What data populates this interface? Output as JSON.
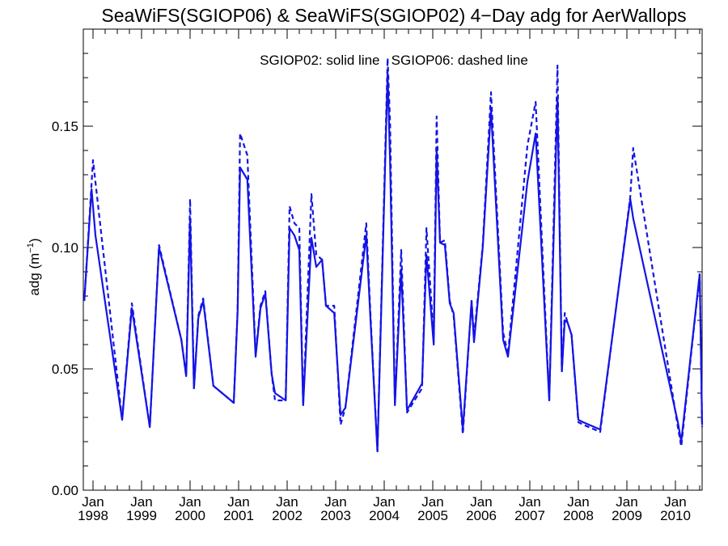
{
  "chart_data": {
    "type": "line",
    "title": "SeaWiFS(SGIOP06) & SeaWiFS(SGIOP02) 4−Day adg for AerWallops",
    "annotation": "SGIOP02: solid line   SGIOP06: dashed line",
    "ylabel": "adg (m",
    "ylabel_sup": "−1",
    "ylabel_close": ")",
    "xlim": [
      1997.8,
      2010.55
    ],
    "ylim": [
      0.0,
      0.19
    ],
    "grid": false,
    "x_major_ticks": [
      1998,
      1999,
      2000,
      2001,
      2002,
      2003,
      2004,
      2005,
      2006,
      2007,
      2008,
      2009,
      2010
    ],
    "x_tick_month_labels": [
      "Jan",
      "Jan",
      "Jan",
      "Jan",
      "Jan",
      "Jan",
      "Jan",
      "Jan",
      "Jan",
      "Jan",
      "Jan",
      "Jan",
      "Jan"
    ],
    "x_tick_year_labels": [
      "1998",
      "1999",
      "2000",
      "2001",
      "2002",
      "2003",
      "2004",
      "2005",
      "2006",
      "2007",
      "2008",
      "2009",
      "2010"
    ],
    "y_major_ticks": [
      0.0,
      0.05,
      0.1,
      0.15
    ],
    "y_tick_labels": [
      "0.00",
      "0.05",
      "0.10",
      "0.15"
    ],
    "color": "#1414e6",
    "series": [
      {
        "name": "SGIOP02",
        "style": "solid",
        "x": [
          1997.82,
          1997.97,
          1998.05,
          1998.6,
          1998.8,
          1999.17,
          1999.36,
          1999.82,
          1999.92,
          2000.0,
          2000.08,
          2000.17,
          2000.27,
          2000.48,
          2000.9,
          2000.98,
          2001.03,
          2001.18,
          2001.35,
          2001.45,
          2001.55,
          2001.68,
          2001.75,
          2001.97,
          2002.05,
          2002.15,
          2002.25,
          2002.33,
          2002.5,
          2002.6,
          2002.72,
          2002.8,
          2002.97,
          2003.1,
          2003.2,
          2003.63,
          2003.72,
          2003.86,
          2004.07,
          2004.12,
          2004.22,
          2004.35,
          2004.47,
          2004.78,
          2004.87,
          2005.02,
          2005.08,
          2005.15,
          2005.25,
          2005.35,
          2005.43,
          2005.62,
          2005.8,
          2005.85,
          2006.03,
          2006.2,
          2006.45,
          2006.55,
          2006.95,
          2007.12,
          2007.4,
          2007.57,
          2007.66,
          2007.72,
          2007.78,
          2007.86,
          2008.0,
          2008.1,
          2008.45,
          2009.07,
          2009.13,
          2010.05,
          2010.12,
          2010.5,
          2010.55
        ],
        "y": [
          0.078,
          0.124,
          0.105,
          0.029,
          0.075,
          0.026,
          0.1,
          0.062,
          0.047,
          0.112,
          0.042,
          0.071,
          0.078,
          0.043,
          0.036,
          0.074,
          0.133,
          0.128,
          0.055,
          0.075,
          0.081,
          0.048,
          0.04,
          0.037,
          0.108,
          0.105,
          0.099,
          0.035,
          0.104,
          0.092,
          0.095,
          0.076,
          0.073,
          0.031,
          0.034,
          0.105,
          0.069,
          0.016,
          0.172,
          0.136,
          0.035,
          0.091,
          0.033,
          0.044,
          0.097,
          0.06,
          0.14,
          0.102,
          0.101,
          0.077,
          0.073,
          0.025,
          0.078,
          0.061,
          0.1,
          0.157,
          0.062,
          0.055,
          0.127,
          0.147,
          0.037,
          0.162,
          0.049,
          0.07,
          0.069,
          0.064,
          0.029,
          0.028,
          0.025,
          0.12,
          0.112,
          0.028,
          0.02,
          0.089,
          0.027
        ]
      },
      {
        "name": "SGIOP06",
        "style": "dashed",
        "x": [
          1997.82,
          1998.0,
          1998.05,
          1998.6,
          1998.8,
          1999.17,
          1999.36,
          1999.82,
          1999.92,
          2000.0,
          2000.08,
          2000.17,
          2000.27,
          2000.48,
          2000.9,
          2000.98,
          2001.03,
          2001.18,
          2001.35,
          2001.45,
          2001.55,
          2001.68,
          2001.75,
          2001.97,
          2002.05,
          2002.15,
          2002.25,
          2002.33,
          2002.5,
          2002.6,
          2002.72,
          2002.8,
          2002.97,
          2003.1,
          2003.2,
          2003.63,
          2003.72,
          2003.86,
          2004.07,
          2004.12,
          2004.22,
          2004.35,
          2004.47,
          2004.78,
          2004.87,
          2005.02,
          2005.08,
          2005.15,
          2005.25,
          2005.35,
          2005.43,
          2005.62,
          2005.8,
          2005.85,
          2006.03,
          2006.2,
          2006.45,
          2006.55,
          2006.95,
          2007.12,
          2007.4,
          2007.57,
          2007.66,
          2007.72,
          2007.78,
          2007.86,
          2008.0,
          2008.1,
          2008.45,
          2009.07,
          2009.13,
          2010.05,
          2010.12,
          2010.5,
          2010.55
        ],
        "y": [
          0.078,
          0.136,
          0.127,
          0.029,
          0.077,
          0.026,
          0.101,
          0.062,
          0.047,
          0.12,
          0.042,
          0.072,
          0.079,
          0.043,
          0.036,
          0.075,
          0.147,
          0.138,
          0.056,
          0.076,
          0.082,
          0.048,
          0.037,
          0.037,
          0.117,
          0.11,
          0.108,
          0.035,
          0.122,
          0.097,
          0.095,
          0.076,
          0.076,
          0.027,
          0.034,
          0.11,
          0.071,
          0.016,
          0.178,
          0.152,
          0.035,
          0.099,
          0.032,
          0.042,
          0.108,
          0.063,
          0.154,
          0.102,
          0.103,
          0.078,
          0.072,
          0.023,
          0.078,
          0.063,
          0.101,
          0.164,
          0.065,
          0.056,
          0.142,
          0.16,
          0.037,
          0.175,
          0.049,
          0.073,
          0.069,
          0.064,
          0.028,
          0.027,
          0.024,
          0.121,
          0.141,
          0.026,
          0.018,
          0.089,
          0.026
        ]
      }
    ]
  }
}
